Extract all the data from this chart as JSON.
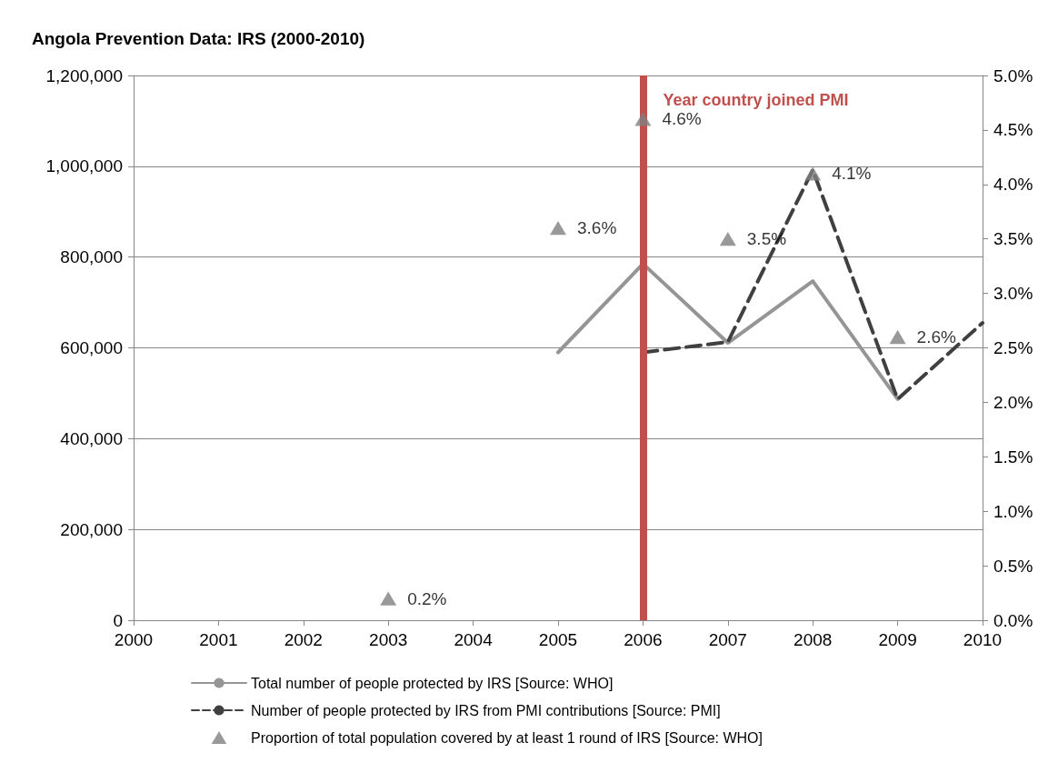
{
  "chart_data": {
    "type": "line",
    "title": "Angola Prevention Data: IRS (2000-2010)",
    "xlim": [
      2000,
      2010
    ],
    "xticks": [
      2000,
      2001,
      2002,
      2003,
      2004,
      2005,
      2006,
      2007,
      2008,
      2009,
      2010
    ],
    "ylim": [
      0,
      1200000
    ],
    "yticks": [
      {
        "value": 0,
        "label": "0"
      },
      {
        "value": 200000,
        "label": "200,000"
      },
      {
        "value": 400000,
        "label": "400,000"
      },
      {
        "value": 600000,
        "label": "600,000"
      },
      {
        "value": 800000,
        "label": "800,000"
      },
      {
        "value": 1000000,
        "label": "1,000,000"
      },
      {
        "value": 1200000,
        "label": "1,200,000"
      }
    ],
    "y2lim": [
      0,
      5
    ],
    "y2ticks": [
      {
        "value": 0,
        "label": "0.0%"
      },
      {
        "value": 0.5,
        "label": "0.5%"
      },
      {
        "value": 1,
        "label": "1.0%"
      },
      {
        "value": 1.5,
        "label": "1.5%"
      },
      {
        "value": 2,
        "label": "2.0%"
      },
      {
        "value": 2.5,
        "label": "2.5%"
      },
      {
        "value": 3,
        "label": "3.0%"
      },
      {
        "value": 3.5,
        "label": "3.5%"
      },
      {
        "value": 4,
        "label": "4.0%"
      },
      {
        "value": 4.5,
        "label": "4.5%"
      },
      {
        "value": 5,
        "label": "5.0%"
      }
    ],
    "grid": "y",
    "legend": "bottom",
    "ref_lines": [
      {
        "axis": "x",
        "value": 2006,
        "label": "Year country joined PMI",
        "color": "#c0504d"
      }
    ],
    "series": [
      {
        "name": "Total number of people protected by IRS [Source: WHO]",
        "color": "#959595",
        "line_style": "solid",
        "x": [
          2005,
          2006,
          2007,
          2008,
          2009
        ],
        "values": [
          590000,
          785000,
          611000,
          747000,
          487000
        ]
      },
      {
        "name": "Number of people protected by IRS from PMI contributions [Source: PMI]",
        "color": "#404040",
        "line_style": "dashed",
        "x": [
          2006,
          2007,
          2008,
          2009,
          2010
        ],
        "values": [
          590000,
          613000,
          992000,
          487000,
          655000
        ]
      },
      {
        "name": "Proportion of total population covered by at least 1 round of IRS [Source: WHO]",
        "type": "scatter",
        "axis": "y2",
        "marker": "triangle",
        "color": "#7f7f7f",
        "x": [
          2003,
          2005,
          2006,
          2007,
          2008,
          2009
        ],
        "values": [
          0.2,
          3.6,
          4.6,
          3.5,
          4.1,
          2.6
        ],
        "value_labels": [
          "0.2%",
          "3.6%",
          "4.6%",
          "3.5%",
          "4.1%",
          "2.6%"
        ]
      }
    ]
  }
}
